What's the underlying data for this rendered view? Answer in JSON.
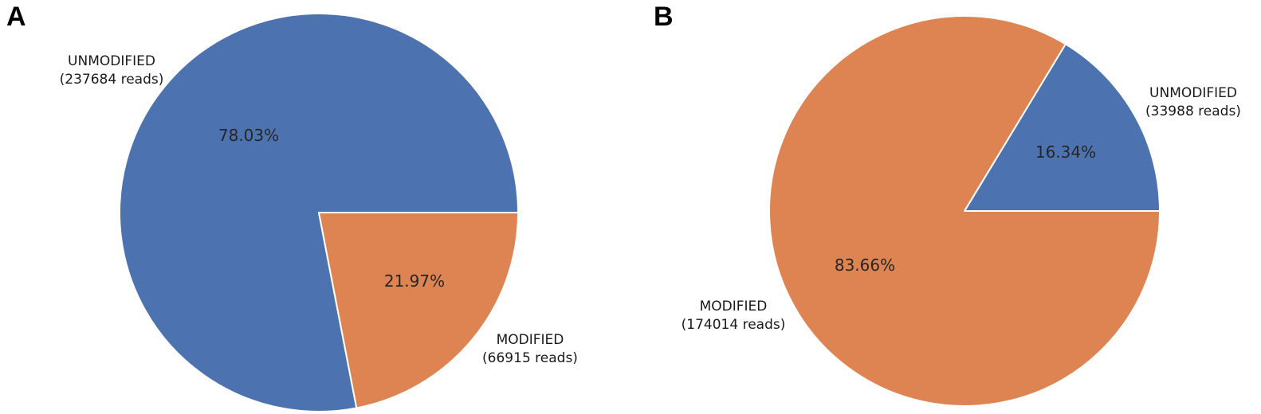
{
  "figure": {
    "background": "#ffffff",
    "text_color": "#1a1a1a"
  },
  "chart_data": [
    {
      "type": "pie",
      "panel_label": "A",
      "start_angle_deg": 0,
      "direction": "counterclockwise",
      "legend": "none",
      "slices": [
        {
          "name": "UNMODIFIED",
          "reads": 237684,
          "reads_label": "(237684 reads)",
          "pct": 78.03,
          "pct_label": "78.03%",
          "color": "#4c72b0"
        },
        {
          "name": "MODIFIED",
          "reads": 66915,
          "reads_label": "(66915 reads)",
          "pct": 21.97,
          "pct_label": "21.97%",
          "color": "#dd8452"
        }
      ]
    },
    {
      "type": "pie",
      "panel_label": "B",
      "start_angle_deg": 0,
      "direction": "counterclockwise",
      "legend": "none",
      "slices": [
        {
          "name": "UNMODIFIED",
          "reads": 33988,
          "reads_label": "(33988 reads)",
          "pct": 16.34,
          "pct_label": "16.34%",
          "color": "#4c72b0"
        },
        {
          "name": "MODIFIED",
          "reads": 174014,
          "reads_label": "(174014 reads)",
          "pct": 83.66,
          "pct_label": "83.66%",
          "color": "#dd8452"
        }
      ]
    }
  ]
}
